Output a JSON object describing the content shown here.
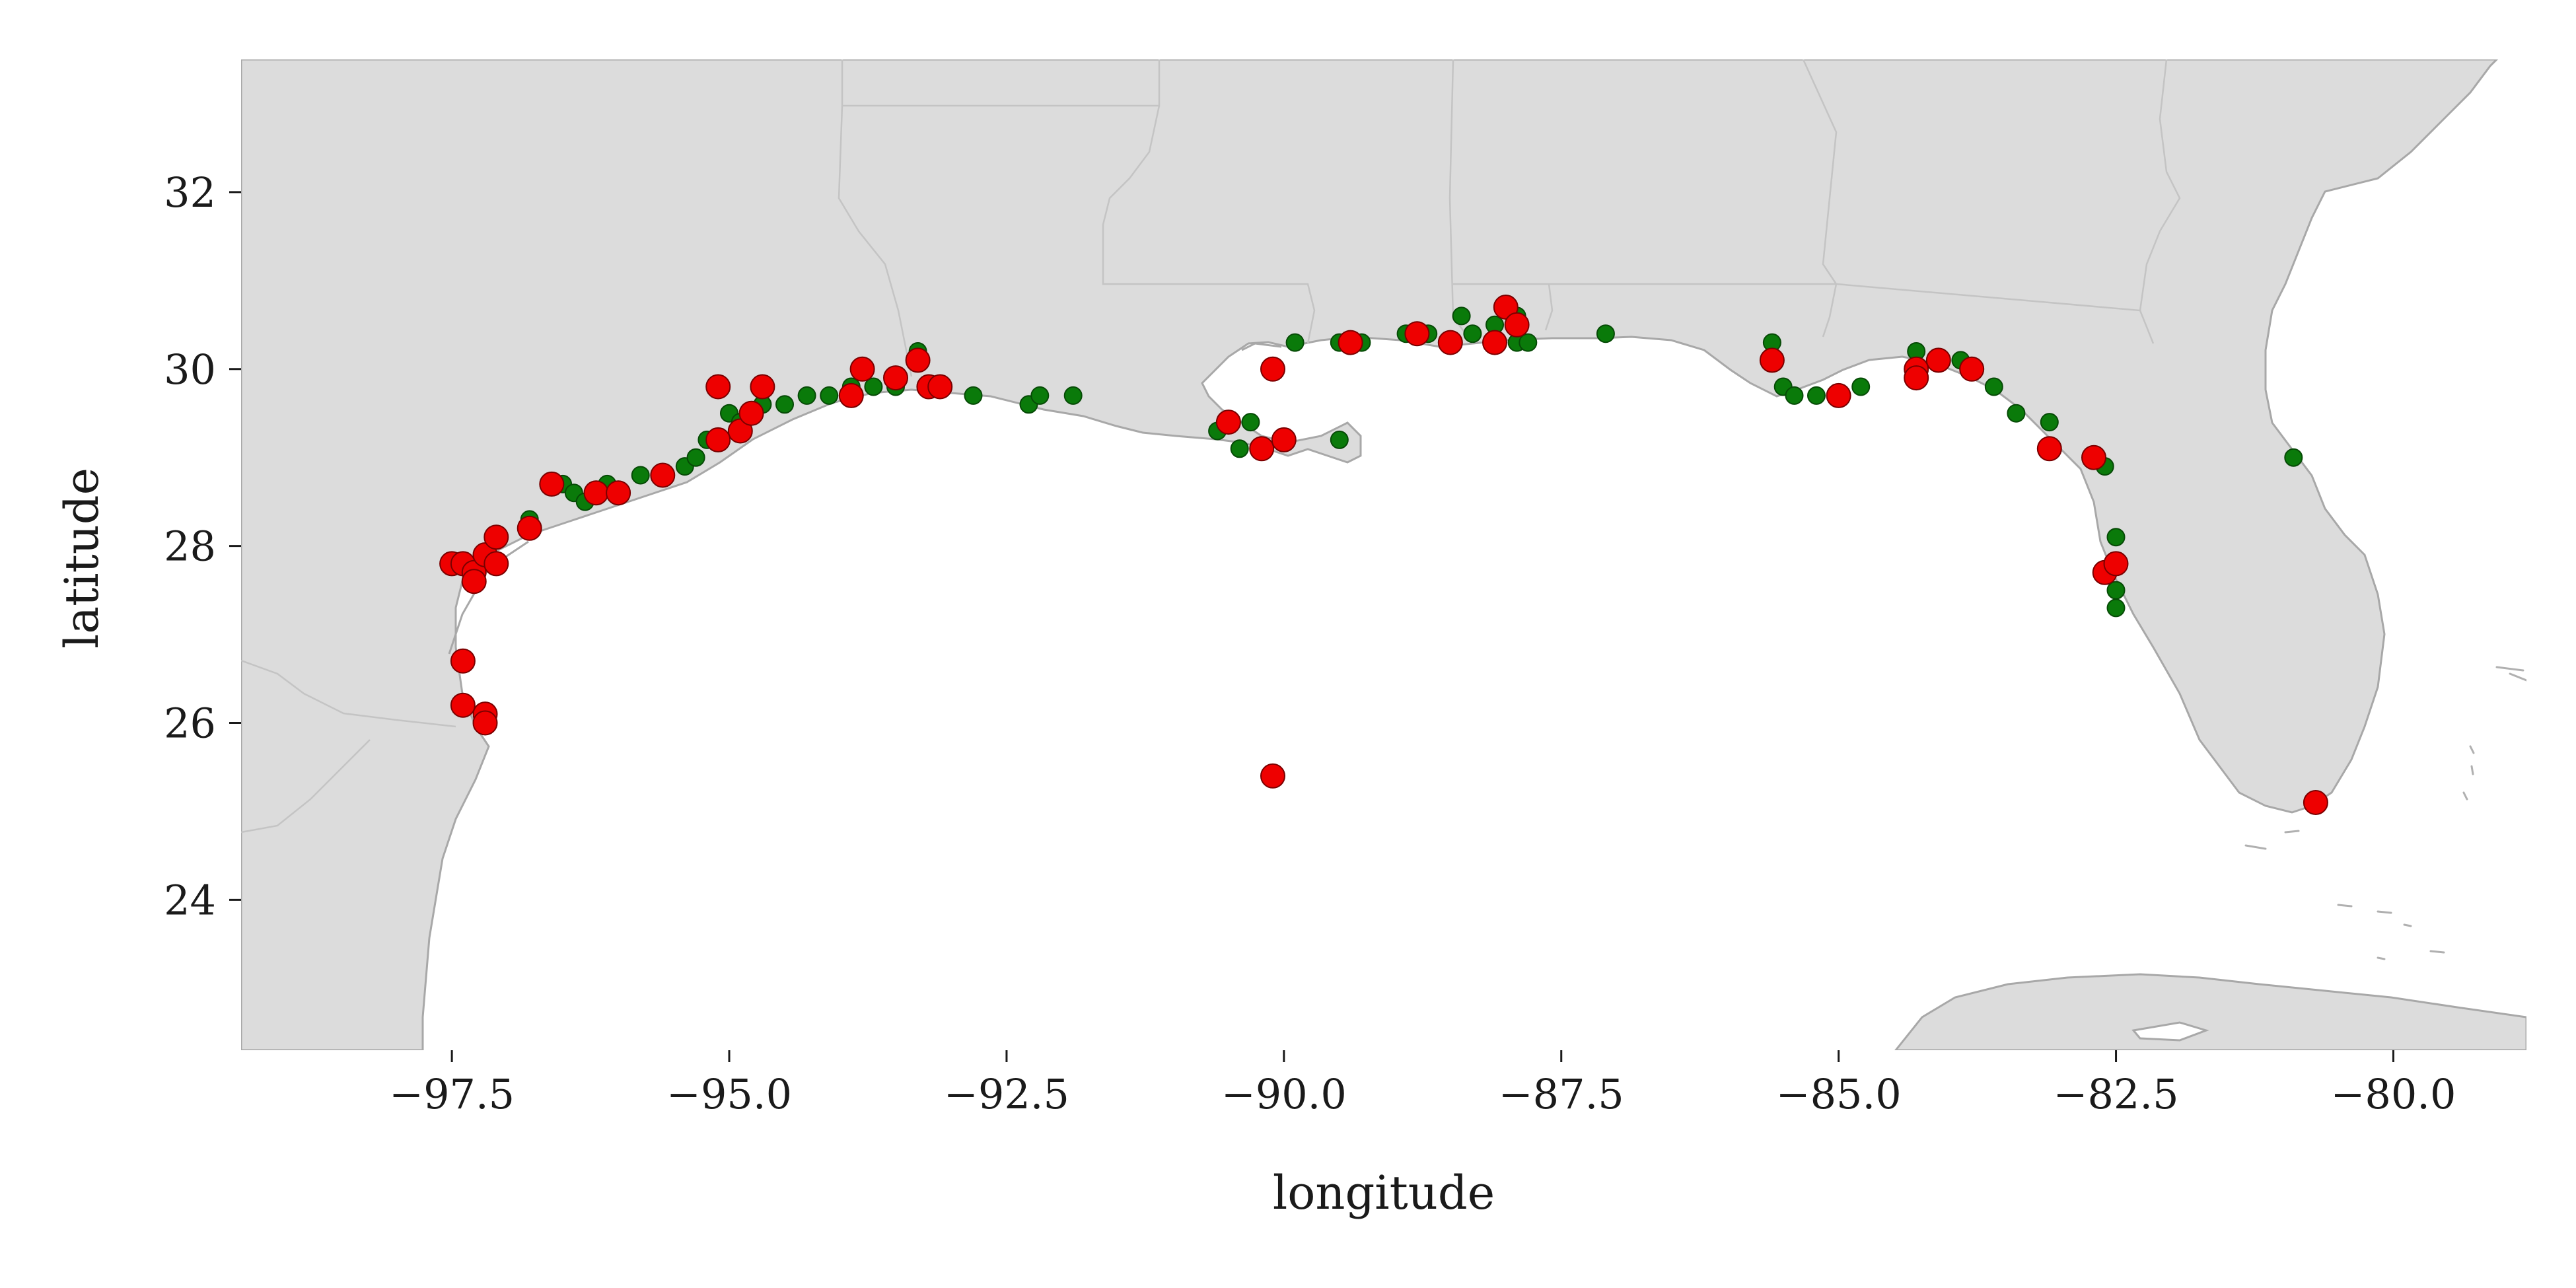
{
  "chart_data": {
    "type": "scatter",
    "xlabel": "longitude",
    "ylabel": "latitude",
    "xlim": [
      -99.4,
      -78.8
    ],
    "ylim": [
      22.3,
      33.5
    ],
    "xticks": [
      -97.5,
      -95.0,
      -92.5,
      -90.0,
      -87.5,
      -85.0,
      -82.5,
      -80.0
    ],
    "xtick_labels": [
      "−97.5",
      "−95.0",
      "−92.5",
      "−90.0",
      "−87.5",
      "−85.0",
      "−82.5",
      "−80.0"
    ],
    "yticks": [
      24,
      26,
      28,
      30,
      32
    ],
    "ytick_labels": [
      "24",
      "26",
      "28",
      "30",
      "32"
    ],
    "grid": false,
    "land_color": "#dcdcdc",
    "border_color": "#a8a8a8",
    "series": [
      {
        "color": "#0a7a0a",
        "points": [
          [
            -96.8,
            28.3
          ],
          [
            -96.5,
            28.7
          ],
          [
            -96.4,
            28.6
          ],
          [
            -96.3,
            28.5
          ],
          [
            -96.1,
            28.7
          ],
          [
            -95.8,
            28.8
          ],
          [
            -95.4,
            28.9
          ],
          [
            -95.3,
            29.0
          ],
          [
            -95.2,
            29.2
          ],
          [
            -95.0,
            29.5
          ],
          [
            -94.9,
            29.4
          ],
          [
            -94.7,
            29.6
          ],
          [
            -94.5,
            29.6
          ],
          [
            -94.3,
            29.7
          ],
          [
            -94.1,
            29.7
          ],
          [
            -93.9,
            29.8
          ],
          [
            -93.7,
            29.8
          ],
          [
            -93.5,
            29.8
          ],
          [
            -93.3,
            30.2
          ],
          [
            -92.8,
            29.7
          ],
          [
            -92.3,
            29.6
          ],
          [
            -92.2,
            29.7
          ],
          [
            -91.9,
            29.7
          ],
          [
            -90.6,
            29.3
          ],
          [
            -90.4,
            29.1
          ],
          [
            -90.3,
            29.4
          ],
          [
            -90.0,
            29.2
          ],
          [
            -89.9,
            30.3
          ],
          [
            -89.5,
            29.2
          ],
          [
            -89.5,
            30.3
          ],
          [
            -89.3,
            30.3
          ],
          [
            -88.9,
            30.4
          ],
          [
            -88.7,
            30.4
          ],
          [
            -88.4,
            30.6
          ],
          [
            -88.3,
            30.4
          ],
          [
            -88.1,
            30.5
          ],
          [
            -87.9,
            30.6
          ],
          [
            -87.9,
            30.3
          ],
          [
            -87.8,
            30.3
          ],
          [
            -87.1,
            30.4
          ],
          [
            -85.6,
            30.3
          ],
          [
            -85.5,
            29.8
          ],
          [
            -85.4,
            29.7
          ],
          [
            -85.2,
            29.7
          ],
          [
            -85.0,
            29.7
          ],
          [
            -84.8,
            29.8
          ],
          [
            -84.3,
            30.2
          ],
          [
            -84.1,
            30.1
          ],
          [
            -83.9,
            30.1
          ],
          [
            -83.6,
            29.8
          ],
          [
            -83.4,
            29.5
          ],
          [
            -83.1,
            29.4
          ],
          [
            -82.6,
            28.9
          ],
          [
            -82.5,
            28.1
          ],
          [
            -82.5,
            27.8
          ],
          [
            -82.5,
            27.5
          ],
          [
            -82.5,
            27.3
          ],
          [
            -80.9,
            29.0
          ]
        ]
      },
      {
        "color": "#ee0000",
        "points": [
          [
            -97.5,
            27.8
          ],
          [
            -97.4,
            27.8
          ],
          [
            -97.3,
            27.7
          ],
          [
            -97.3,
            27.6
          ],
          [
            -97.2,
            27.9
          ],
          [
            -97.1,
            27.8
          ],
          [
            -97.1,
            28.1
          ],
          [
            -97.4,
            26.7
          ],
          [
            -97.4,
            26.2
          ],
          [
            -97.2,
            26.1
          ],
          [
            -97.2,
            26.0
          ],
          [
            -96.8,
            28.2
          ],
          [
            -96.6,
            28.7
          ],
          [
            -96.2,
            28.6
          ],
          [
            -96.0,
            28.6
          ],
          [
            -95.6,
            28.8
          ],
          [
            -95.1,
            29.2
          ],
          [
            -95.1,
            29.8
          ],
          [
            -94.9,
            29.3
          ],
          [
            -94.8,
            29.5
          ],
          [
            -94.7,
            29.8
          ],
          [
            -93.9,
            29.7
          ],
          [
            -93.8,
            30.0
          ],
          [
            -93.5,
            29.9
          ],
          [
            -93.3,
            30.1
          ],
          [
            -93.2,
            29.8
          ],
          [
            -93.1,
            29.8
          ],
          [
            -90.5,
            29.4
          ],
          [
            -90.2,
            29.1
          ],
          [
            -90.1,
            30.0
          ],
          [
            -90.0,
            29.2
          ],
          [
            -90.1,
            25.4
          ],
          [
            -89.4,
            30.3
          ],
          [
            -88.8,
            30.4
          ],
          [
            -88.5,
            30.3
          ],
          [
            -88.1,
            30.3
          ],
          [
            -88.0,
            30.7
          ],
          [
            -87.9,
            30.5
          ],
          [
            -85.6,
            30.1
          ],
          [
            -85.0,
            29.7
          ],
          [
            -84.3,
            30.0
          ],
          [
            -84.3,
            29.9
          ],
          [
            -84.1,
            30.1
          ],
          [
            -83.8,
            30.0
          ],
          [
            -83.1,
            29.1
          ],
          [
            -82.7,
            29.0
          ],
          [
            -82.6,
            27.7
          ],
          [
            -82.5,
            27.8
          ],
          [
            -80.7,
            25.1
          ]
        ]
      }
    ]
  }
}
